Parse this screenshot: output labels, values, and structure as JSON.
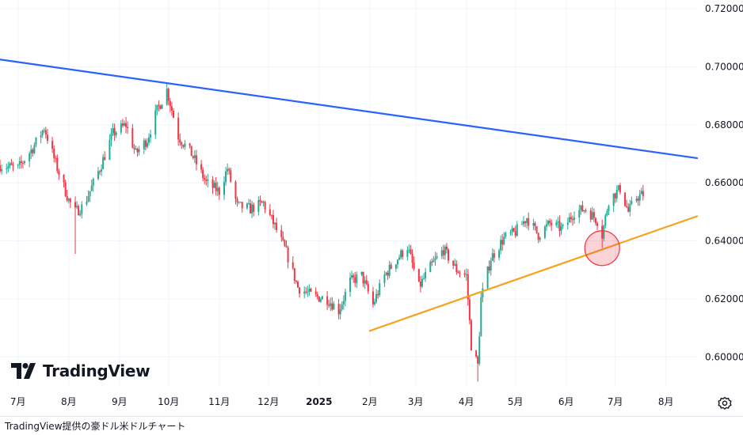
{
  "chart_data": {
    "type": "candlestick",
    "title": "",
    "xlabel": "",
    "ylabel": "",
    "ylim": [
      0.59,
      0.723
    ],
    "y_ticks": [
      "0.72000",
      "0.70000",
      "0.68000",
      "0.66000",
      "0.64000",
      "0.62000",
      "0.60000"
    ],
    "y_tick_values": [
      0.72,
      0.7,
      0.68,
      0.66,
      0.64,
      0.62,
      0.6
    ],
    "x_ticks": [
      {
        "label": "7月",
        "date": "2024-07-01",
        "bold": false
      },
      {
        "label": "8月",
        "date": "2024-08-01",
        "bold": false
      },
      {
        "label": "9月",
        "date": "2024-09-01",
        "bold": false
      },
      {
        "label": "10月",
        "date": "2024-10-01",
        "bold": false
      },
      {
        "label": "11月",
        "date": "2024-11-01",
        "bold": false
      },
      {
        "label": "12月",
        "date": "2024-12-01",
        "bold": false
      },
      {
        "label": "2025",
        "date": "2025-01-01",
        "bold": true
      },
      {
        "label": "2月",
        "date": "2025-02-01",
        "bold": false
      },
      {
        "label": "3月",
        "date": "2025-03-01",
        "bold": false
      },
      {
        "label": "4月",
        "date": "2025-04-01",
        "bold": false
      },
      {
        "label": "5月",
        "date": "2025-05-01",
        "bold": false
      },
      {
        "label": "6月",
        "date": "2025-06-01",
        "bold": false
      },
      {
        "label": "7月",
        "date": "2025-07-01",
        "bold": false
      },
      {
        "label": "8月",
        "date": "2025-08-01",
        "bold": false
      }
    ],
    "x_range": [
      "2024-06-20",
      "2025-08-20"
    ],
    "price_path": [
      [
        "2024-06-20",
        0.666
      ],
      [
        "2024-07-01",
        0.665
      ],
      [
        "2024-07-10",
        0.672
      ],
      [
        "2024-07-17",
        0.679
      ],
      [
        "2024-07-25",
        0.665
      ],
      [
        "2024-08-01",
        0.654
      ],
      [
        "2024-08-05",
        0.65
      ],
      [
        "2024-08-10",
        0.652
      ],
      [
        "2024-08-20",
        0.665
      ],
      [
        "2024-08-28",
        0.677
      ],
      [
        "2024-09-05",
        0.68
      ],
      [
        "2024-09-11",
        0.67
      ],
      [
        "2024-09-18",
        0.675
      ],
      [
        "2024-09-24",
        0.685
      ],
      [
        "2024-09-30",
        0.692
      ],
      [
        "2024-10-07",
        0.676
      ],
      [
        "2024-10-15",
        0.67
      ],
      [
        "2024-10-24",
        0.66
      ],
      [
        "2024-11-01",
        0.657
      ],
      [
        "2024-11-06",
        0.665
      ],
      [
        "2024-11-12",
        0.652
      ],
      [
        "2024-11-20",
        0.651
      ],
      [
        "2024-11-28",
        0.653
      ],
      [
        "2024-12-05",
        0.645
      ],
      [
        "2024-12-12",
        0.636
      ],
      [
        "2024-12-19",
        0.624
      ],
      [
        "2024-12-28",
        0.621
      ],
      [
        "2025-01-06",
        0.62
      ],
      [
        "2025-01-13",
        0.616
      ],
      [
        "2025-01-20",
        0.626
      ],
      [
        "2025-01-27",
        0.628
      ],
      [
        "2025-02-03",
        0.618
      ],
      [
        "2025-02-10",
        0.628
      ],
      [
        "2025-02-18",
        0.634
      ],
      [
        "2025-02-24",
        0.638
      ],
      [
        "2025-03-03",
        0.624
      ],
      [
        "2025-03-10",
        0.631
      ],
      [
        "2025-03-18",
        0.637
      ],
      [
        "2025-03-26",
        0.63
      ],
      [
        "2025-04-01",
        0.628
      ],
      [
        "2025-04-04",
        0.604
      ],
      [
        "2025-04-08",
        0.597
      ],
      [
        "2025-04-10",
        0.62
      ],
      [
        "2025-04-16",
        0.634
      ],
      [
        "2025-04-24",
        0.641
      ],
      [
        "2025-05-01",
        0.643
      ],
      [
        "2025-05-08",
        0.648
      ],
      [
        "2025-05-15",
        0.642
      ],
      [
        "2025-05-22",
        0.646
      ],
      [
        "2025-05-30",
        0.644
      ],
      [
        "2025-06-06",
        0.65
      ],
      [
        "2025-06-13",
        0.651
      ],
      [
        "2025-06-20",
        0.647
      ],
      [
        "2025-06-23",
        0.642
      ],
      [
        "2025-06-27",
        0.654
      ],
      [
        "2025-07-04",
        0.658
      ],
      [
        "2025-07-09",
        0.65
      ],
      [
        "2025-07-14",
        0.655
      ],
      [
        "2025-07-18",
        0.656
      ]
    ],
    "trendlines": [
      {
        "name": "resistance",
        "color": "#2962ff",
        "from": [
          "2024-06-20",
          0.7025
        ],
        "to": [
          "2025-08-20",
          0.6685
        ]
      },
      {
        "name": "support",
        "color": "#f7a21b",
        "from": [
          "2025-02-01",
          0.609
        ],
        "to": [
          "2025-08-20",
          0.6485
        ]
      }
    ],
    "annotations": [
      {
        "type": "circle",
        "date": "2025-06-23",
        "price": 0.6375,
        "color": "#f23645"
      }
    ],
    "colors": {
      "up": "#22ab94",
      "down": "#f23645"
    },
    "grid": true
  },
  "branding": {
    "logo_text": "TradingView",
    "logo_icon": "tradingview-logo-icon"
  },
  "footer": {
    "caption": "TradingView提供の豪ドル米ドルチャート"
  },
  "controls": {
    "settings_icon": "gear-icon"
  }
}
